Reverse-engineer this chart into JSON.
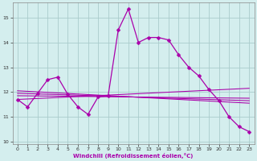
{
  "xlabel": "Windchill (Refroidissement éolien,°C)",
  "background_color": "#d4eeee",
  "grid_color": "#aacccc",
  "line_color": "#aa00aa",
  "x_values": [
    0,
    1,
    2,
    3,
    4,
    5,
    6,
    7,
    8,
    9,
    10,
    11,
    12,
    13,
    14,
    15,
    16,
    17,
    18,
    19,
    20,
    21,
    22,
    23
  ],
  "ylim": [
    9.9,
    15.6
  ],
  "xlim": [
    -0.5,
    23.5
  ],
  "main_series": [
    11.7,
    11.4,
    11.95,
    12.5,
    12.6,
    11.9,
    11.4,
    11.1,
    11.8,
    11.85,
    14.5,
    15.35,
    14.0,
    14.2,
    14.2,
    14.1,
    13.5,
    13.0,
    12.65,
    12.1,
    11.65,
    11.0,
    10.6,
    10.4
  ],
  "trend_lines": [
    {
      "x0": 0,
      "y0": 11.7,
      "x1": 23,
      "y1": 12.15
    },
    {
      "x0": 0,
      "y0": 11.85,
      "x1": 23,
      "y1": 11.75
    },
    {
      "x0": 0,
      "y0": 11.95,
      "x1": 23,
      "y1": 11.65
    },
    {
      "x0": 0,
      "y0": 12.05,
      "x1": 23,
      "y1": 11.55
    }
  ],
  "yticks": [
    10,
    11,
    12,
    13,
    14,
    15
  ],
  "xticks": [
    0,
    1,
    2,
    3,
    4,
    5,
    6,
    7,
    8,
    9,
    10,
    11,
    12,
    13,
    14,
    15,
    16,
    17,
    18,
    19,
    20,
    21,
    22,
    23
  ],
  "markersize": 2.5,
  "linewidth": 0.9
}
